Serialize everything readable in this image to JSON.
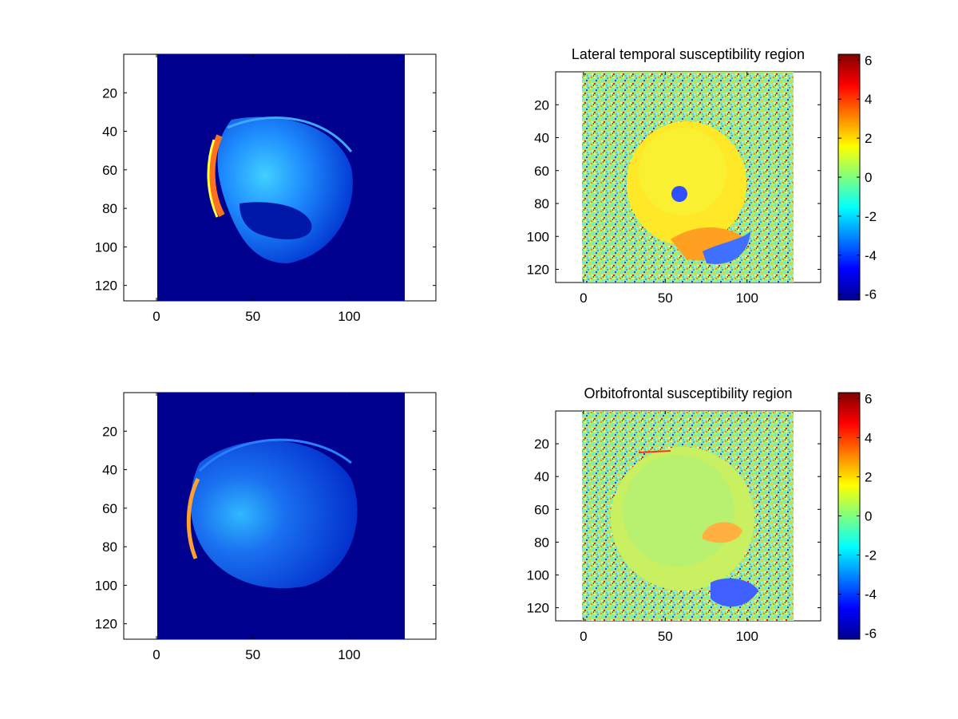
{
  "figure": {
    "layout": "2x2 subplots",
    "background": "#ffffff"
  },
  "chart_data": [
    {
      "id": "top-left",
      "type": "heatmap",
      "title": "",
      "content": "sagittal MRI magnitude image (jet colormap)",
      "image_extent": {
        "x": [
          0,
          128
        ],
        "y": [
          0,
          128
        ]
      },
      "xlim": [
        -17,
        145
      ],
      "ylim": [
        128,
        0
      ],
      "xticks": [
        0,
        50,
        100
      ],
      "yticks": [
        20,
        40,
        60,
        80,
        100,
        120
      ],
      "colorbar": null
    },
    {
      "id": "top-right",
      "type": "heatmap",
      "title": "Lateral temporal susceptibility region",
      "content": "phase/field map with noisy background (jet colormap)",
      "image_extent": {
        "x": [
          0,
          128
        ],
        "y": [
          0,
          128
        ]
      },
      "xlim": [
        -17,
        145
      ],
      "ylim": [
        128,
        0
      ],
      "xticks": [
        0,
        50,
        100
      ],
      "yticks": [
        20,
        40,
        60,
        80,
        100,
        120
      ],
      "colorbar": {
        "range": [
          -6.3,
          6.3
        ],
        "ticks": [
          6,
          4,
          2,
          0,
          -2,
          -4,
          -6
        ]
      }
    },
    {
      "id": "bottom-left",
      "type": "heatmap",
      "title": "",
      "content": "sagittal MRI magnitude image (jet colormap)",
      "image_extent": {
        "x": [
          0,
          128
        ],
        "y": [
          0,
          128
        ]
      },
      "xlim": [
        -17,
        145
      ],
      "ylim": [
        128,
        0
      ],
      "xticks": [
        0,
        50,
        100
      ],
      "yticks": [
        20,
        40,
        60,
        80,
        100,
        120
      ],
      "colorbar": null
    },
    {
      "id": "bottom-right",
      "type": "heatmap",
      "title": "Orbitofrontal susceptibility region",
      "content": "phase/field map with noisy background (jet colormap)",
      "image_extent": {
        "x": [
          0,
          128
        ],
        "y": [
          0,
          128
        ]
      },
      "xlim": [
        -17,
        145
      ],
      "ylim": [
        128,
        0
      ],
      "xticks": [
        0,
        50,
        100
      ],
      "yticks": [
        20,
        40,
        60,
        80,
        100,
        120
      ],
      "colorbar": {
        "range": [
          -6.3,
          6.3
        ],
        "ticks": [
          6,
          4,
          2,
          0,
          -2,
          -4,
          -6
        ]
      }
    }
  ]
}
